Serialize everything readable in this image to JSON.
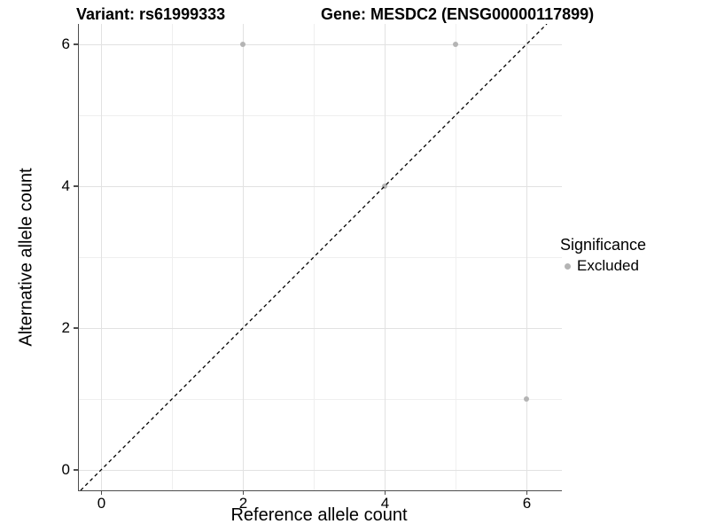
{
  "titles": {
    "variant": "Variant: rs61999333",
    "gene": "Gene: MESDC2 (ENSG00000117899)"
  },
  "x_axis": {
    "title": "Reference allele count",
    "tick_labels": [
      "0",
      "2",
      "4",
      "6"
    ]
  },
  "y_axis": {
    "title": "Alternative allele count",
    "tick_labels": [
      "0",
      "2",
      "4",
      "6"
    ]
  },
  "legend": {
    "title": "Significance",
    "items": [
      {
        "label": "Excluded",
        "color": "#b4b4b4"
      }
    ]
  },
  "chart_data": {
    "type": "scatter",
    "title": "Variant: rs61999333 — Gene: MESDC2 (ENSG00000117899)",
    "xlabel": "Reference allele count",
    "ylabel": "Alternative allele count",
    "xlim": [
      -0.3,
      6.5
    ],
    "ylim": [
      -0.3,
      6.3
    ],
    "x_ticks": [
      0,
      2,
      4,
      6
    ],
    "y_ticks": [
      0,
      2,
      4,
      6
    ],
    "x_minor_grid": [
      1,
      3,
      5
    ],
    "y_minor_grid": [
      1,
      3,
      5
    ],
    "grid": "on",
    "legend_position": "right",
    "series": [
      {
        "name": "Excluded",
        "color": "#b4b4b4",
        "points": [
          [
            2,
            6
          ],
          [
            4,
            4
          ],
          [
            5,
            6
          ],
          [
            6,
            1
          ]
        ]
      }
    ],
    "reference_line": {
      "type": "identity y=x",
      "style": "dashed",
      "color": "#000000"
    }
  },
  "colors": {
    "background": "#ffffff",
    "axis_line": "#4d4d4d",
    "grid_major": "#e2e2e2",
    "grid_minor": "#efefef",
    "point": "#b4b4b4",
    "text": "#000000"
  }
}
